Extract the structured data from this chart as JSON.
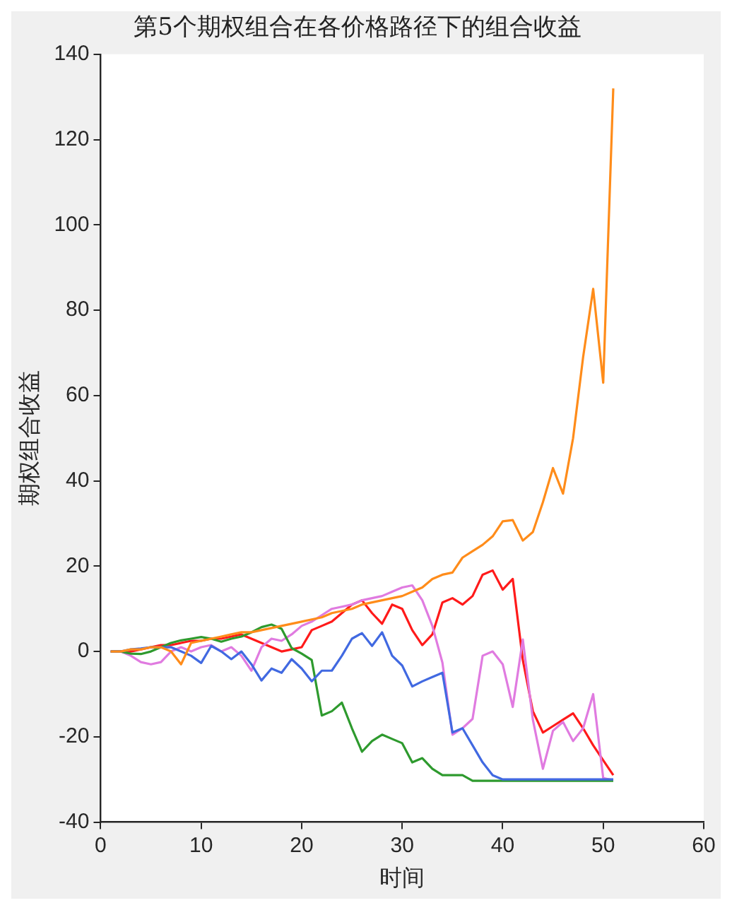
{
  "chart_data": {
    "type": "line",
    "title": "第5个期权组合在各价格路径下的组合收益",
    "xlabel": "时间",
    "ylabel": "期权组合收益",
    "x": [
      1,
      2,
      3,
      4,
      5,
      6,
      7,
      8,
      9,
      10,
      11,
      12,
      13,
      14,
      15,
      16,
      17,
      18,
      19,
      20,
      21,
      22,
      23,
      24,
      25,
      26,
      27,
      28,
      29,
      30,
      31,
      32,
      33,
      34,
      35,
      36,
      37,
      38,
      39,
      40,
      41,
      42,
      43,
      44,
      45,
      46,
      47,
      48,
      49,
      50,
      51
    ],
    "series": [
      {
        "color": "#ff8c1a",
        "values": [
          0,
          0,
          0.5,
          0.5,
          1,
          1,
          0,
          -3,
          2,
          2.5,
          3,
          3.5,
          4,
          4.5,
          4.5,
          5,
          5.5,
          6,
          6.5,
          7,
          7.5,
          8,
          9,
          9.5,
          10,
          11,
          11.5,
          12,
          12.5,
          13,
          14,
          15,
          17,
          18,
          18.5,
          22,
          23.5,
          25,
          27,
          30.5,
          30.8,
          26,
          28,
          35,
          43,
          37,
          50,
          69,
          85,
          63,
          132
        ]
      },
      {
        "color": "#4169e1",
        "values": [
          0,
          0,
          0.5,
          0.7,
          1,
          1,
          1,
          0,
          -1,
          -2.7,
          1.3,
          0,
          -1.8,
          0,
          -3,
          -6.8,
          -4,
          -5,
          -1.8,
          -4,
          -7,
          -4.5,
          -4.5,
          -1,
          3,
          4.3,
          1.3,
          4.5,
          -1,
          -3.3,
          -8.2,
          -7,
          -6,
          -5,
          -19,
          -18,
          -22,
          -26,
          -29,
          -30,
          -30,
          -30,
          -30,
          -30,
          -30,
          -30,
          -30,
          -30,
          -30,
          -30,
          -30
        ]
      },
      {
        "color": "#2e9a2e",
        "values": [
          0,
          0,
          -0.5,
          -0.6,
          0,
          1,
          2,
          2.6,
          3,
          3.4,
          3,
          2.3,
          3,
          3.5,
          4.5,
          5.7,
          6.3,
          5.3,
          0.8,
          -0.5,
          -2,
          -15,
          -14,
          -12,
          -18,
          -23.5,
          -21,
          -19.5,
          -20.5,
          -21.5,
          -26,
          -25,
          -27.5,
          -29,
          -29,
          -29,
          -30.3,
          -30.3,
          -30.3,
          -30.3,
          -30.3,
          -30.3,
          -30.3,
          -30.3,
          -30.3,
          -30.3,
          -30.3,
          -30.3,
          -30.3,
          -30.3,
          -30.3
        ]
      },
      {
        "color": "#e07be0",
        "values": [
          0,
          0,
          -1,
          -2.5,
          -3,
          -2.5,
          0,
          1,
          0,
          1,
          1.5,
          0,
          1,
          -1,
          -4.5,
          1,
          3,
          2.5,
          4,
          6,
          7,
          8.5,
          10,
          10.5,
          11,
          12,
          12.5,
          13,
          14,
          15,
          15.5,
          12,
          6,
          -2.6,
          -19.5,
          -18,
          -15.8,
          -1,
          0,
          -3,
          -13,
          2.8,
          -16,
          -27.5,
          -18.6,
          -16.5,
          -21,
          -18,
          -10,
          -29.7,
          -30.2
        ]
      },
      {
        "color": "#ff1a1a",
        "values": [
          0,
          0,
          0,
          0.5,
          1,
          1.5,
          1.5,
          2,
          2.5,
          2.5,
          3,
          3,
          3.5,
          4,
          3,
          2,
          1,
          0,
          0.5,
          1,
          5,
          6,
          7,
          9,
          11,
          12,
          9,
          6.5,
          11,
          10,
          5,
          1.5,
          4,
          11.5,
          12.5,
          11,
          13,
          18,
          19,
          14.5,
          17,
          -2,
          -14,
          -19,
          -17.5,
          -16,
          -14.5,
          -18,
          -22,
          -25.5,
          -29
        ]
      }
    ],
    "xlim": [
      0,
      60
    ],
    "xticks": [
      0,
      10,
      20,
      30,
      40,
      50,
      60
    ],
    "ylim": [
      -40,
      140
    ],
    "yticks": [
      -40,
      -20,
      0,
      20,
      40,
      60,
      80,
      100,
      120,
      140
    ],
    "grid": false,
    "legend": false
  }
}
